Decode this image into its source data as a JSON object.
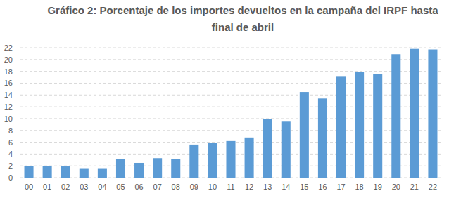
{
  "chart_data": {
    "type": "bar",
    "title": "Gráfico 2: Porcentaje de los importes devueltos en la campaña del IRPF hasta final de abril",
    "categories": [
      "00",
      "01",
      "02",
      "03",
      "04",
      "05",
      "06",
      "07",
      "08",
      "09",
      "10",
      "11",
      "12",
      "13",
      "14",
      "15",
      "16",
      "17",
      "18",
      "19",
      "20",
      "21",
      "22"
    ],
    "values": [
      2.0,
      2.0,
      1.9,
      1.6,
      1.6,
      3.2,
      2.5,
      3.3,
      3.1,
      5.6,
      5.9,
      6.2,
      6.8,
      9.9,
      9.6,
      14.5,
      13.4,
      17.2,
      17.9,
      17.6,
      20.9,
      21.8,
      21.7
    ],
    "color": "#5b9bd5",
    "ylim": [
      0,
      22
    ],
    "yticks": [
      0,
      2,
      4,
      6,
      8,
      10,
      12,
      14,
      16,
      18,
      20,
      22
    ],
    "grid": true
  }
}
